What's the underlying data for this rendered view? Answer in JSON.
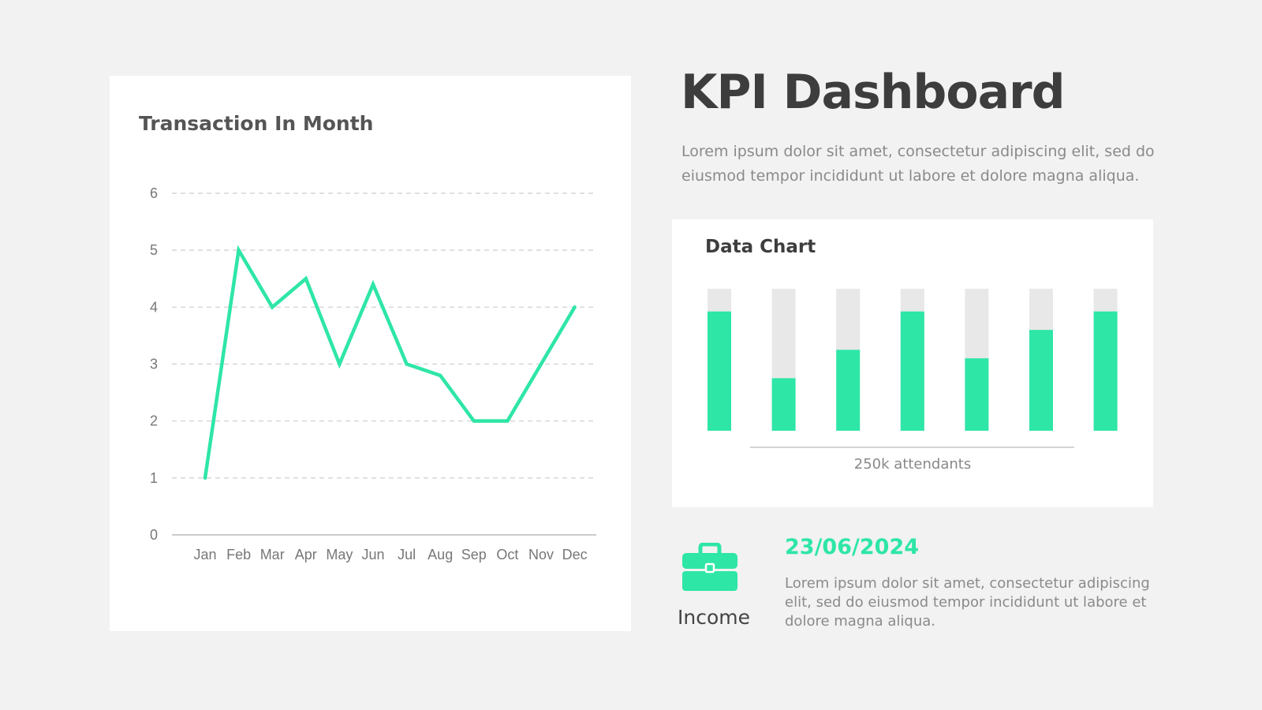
{
  "header": {
    "title": "KPI Dashboard",
    "description": "Lorem ipsum dolor sit amet, consectetur adipiscing elit, sed do eiusmod tempor incididunt ut labore et dolore magna aliqua."
  },
  "colors": {
    "accent": "#2ee6a6",
    "bar_background": "#e8e8e8",
    "grid": "#d6d6d6",
    "axis": "#cccccc",
    "tick_text": "#777777"
  },
  "chart_data": [
    {
      "type": "line",
      "title": "Transaction In Month",
      "x": [
        "Jan",
        "Feb",
        "Mar",
        "Apr",
        "May",
        "Jun",
        "Jul",
        "Aug",
        "Sep",
        "Oct",
        "Nov",
        "Dec"
      ],
      "y_ticks": [
        0,
        1,
        2,
        3,
        4,
        5,
        6
      ],
      "ylim": [
        0,
        6
      ],
      "grid": true,
      "series": [
        {
          "values": [
            1,
            5,
            4,
            4.5,
            3,
            4.4,
            3,
            2.8,
            2,
            2,
            3,
            4
          ]
        }
      ]
    },
    {
      "type": "bar",
      "title": "Data Chart",
      "xlabel": "250k attendants",
      "ylim": [
        0,
        100
      ],
      "values": [
        84,
        37,
        57,
        84,
        51,
        71,
        84
      ]
    }
  ],
  "income": {
    "icon": "briefcase-icon",
    "label": "Income",
    "date": "23/06/2024",
    "description": "Lorem ipsum dolor sit amet, consectetur adipiscing elit, sed do eiusmod tempor incididunt ut labore et dolore magna aliqua."
  }
}
